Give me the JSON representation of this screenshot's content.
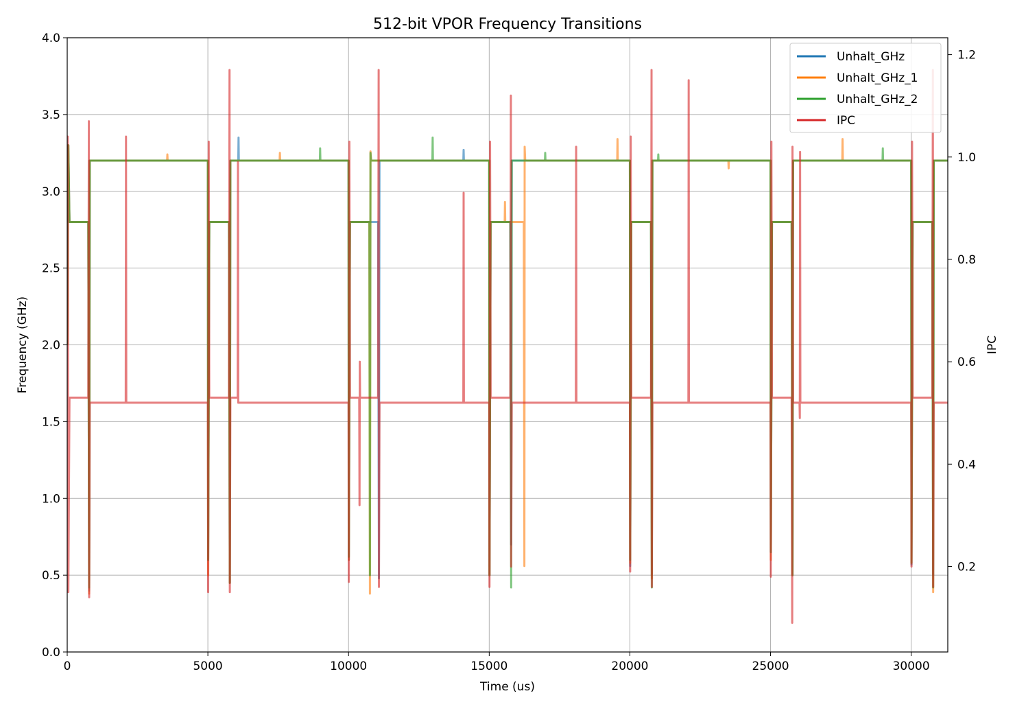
{
  "chart_data": {
    "type": "line",
    "title": "512-bit VPOR Frequency Transitions",
    "xlabel": "Time (us)",
    "ylabel": "Frequency (GHz)",
    "y2label": "IPC",
    "xlim": [
      0,
      31300
    ],
    "ylim": [
      0.0,
      4.0
    ],
    "y2lim": [
      0.033,
      1.233
    ],
    "x_ticks": [
      0,
      5000,
      10000,
      15000,
      20000,
      25000,
      30000
    ],
    "x_tick_labels": [
      "0",
      "5000",
      "10000",
      "15000",
      "20000",
      "25000",
      "30000"
    ],
    "y_ticks": [
      0.0,
      0.5,
      1.0,
      1.5,
      2.0,
      2.5,
      3.0,
      3.5,
      4.0
    ],
    "y_tick_labels": [
      "0.0",
      "0.5",
      "1.0",
      "1.5",
      "2.0",
      "2.5",
      "3.0",
      "3.5",
      "4.0"
    ],
    "y2_ticks": [
      0.2,
      0.4,
      0.6,
      0.8,
      1.0,
      1.2
    ],
    "y2_tick_labels": [
      "0.2",
      "0.4",
      "0.6",
      "0.8",
      "1.0",
      "1.2"
    ],
    "grid": true,
    "legend_position": "top-right",
    "series": [
      {
        "name": "Unhalt_GHz",
        "color": "#1f77b4",
        "axis": "left",
        "points": [
          [
            0,
            2.0
          ],
          [
            40,
            3.3
          ],
          [
            80,
            2.8
          ],
          [
            750,
            2.8
          ],
          [
            780,
            0.4
          ],
          [
            800,
            3.2
          ],
          [
            2100,
            3.2
          ],
          [
            3500,
            3.2
          ],
          [
            5000,
            3.2
          ],
          [
            5010,
            0.6
          ],
          [
            5050,
            2.8
          ],
          [
            5750,
            2.8
          ],
          [
            5780,
            0.45
          ],
          [
            5800,
            3.2
          ],
          [
            6080,
            3.2
          ],
          [
            6090,
            3.35
          ],
          [
            6100,
            3.2
          ],
          [
            10000,
            3.2
          ],
          [
            10010,
            0.6
          ],
          [
            10050,
            2.8
          ],
          [
            11050,
            2.8
          ],
          [
            11080,
            0.48
          ],
          [
            11100,
            3.2
          ],
          [
            14080,
            3.2
          ],
          [
            14090,
            3.27
          ],
          [
            14100,
            3.2
          ],
          [
            15000,
            3.2
          ],
          [
            15010,
            0.5
          ],
          [
            15050,
            2.8
          ],
          [
            15750,
            2.8
          ],
          [
            15780,
            0.7
          ],
          [
            15800,
            3.2
          ],
          [
            20000,
            3.2
          ],
          [
            20010,
            0.56
          ],
          [
            20050,
            2.8
          ],
          [
            20750,
            2.8
          ],
          [
            20780,
            0.5
          ],
          [
            20800,
            3.2
          ],
          [
            25000,
            3.2
          ],
          [
            25010,
            0.65
          ],
          [
            25050,
            2.8
          ],
          [
            25750,
            2.8
          ],
          [
            25780,
            0.5
          ],
          [
            25800,
            3.2
          ],
          [
            30000,
            3.2
          ],
          [
            30010,
            0.57
          ],
          [
            30050,
            2.8
          ],
          [
            30750,
            2.8
          ],
          [
            30780,
            0.5
          ],
          [
            30800,
            3.2
          ],
          [
            31300,
            3.2
          ]
        ]
      },
      {
        "name": "Unhalt_GHz_1",
        "color": "#ff7f0e",
        "axis": "left",
        "points": [
          [
            0,
            2.0
          ],
          [
            40,
            3.3
          ],
          [
            80,
            2.8
          ],
          [
            750,
            2.8
          ],
          [
            780,
            0.38
          ],
          [
            800,
            3.2
          ],
          [
            3550,
            3.2
          ],
          [
            3560,
            3.24
          ],
          [
            3570,
            3.2
          ],
          [
            5000,
            3.2
          ],
          [
            5010,
            0.5
          ],
          [
            5050,
            2.8
          ],
          [
            5750,
            2.8
          ],
          [
            5780,
            0.45
          ],
          [
            5800,
            3.2
          ],
          [
            7550,
            3.2
          ],
          [
            7560,
            3.25
          ],
          [
            7570,
            3.2
          ],
          [
            10000,
            3.2
          ],
          [
            10010,
            0.6
          ],
          [
            10050,
            2.8
          ],
          [
            10740,
            2.8
          ],
          [
            10760,
            0.38
          ],
          [
            10780,
            3.26
          ],
          [
            10800,
            3.2
          ],
          [
            15000,
            3.2
          ],
          [
            15010,
            0.5
          ],
          [
            15050,
            2.8
          ],
          [
            15550,
            2.8
          ],
          [
            15560,
            2.93
          ],
          [
            15570,
            2.8
          ],
          [
            16230,
            2.8
          ],
          [
            16250,
            0.56
          ],
          [
            16260,
            3.29
          ],
          [
            16280,
            3.2
          ],
          [
            19550,
            3.2
          ],
          [
            19560,
            3.34
          ],
          [
            19570,
            3.2
          ],
          [
            20000,
            3.2
          ],
          [
            20010,
            0.58
          ],
          [
            20050,
            2.8
          ],
          [
            20750,
            2.8
          ],
          [
            20780,
            0.48
          ],
          [
            20800,
            3.2
          ],
          [
            23500,
            3.2
          ],
          [
            23510,
            3.15
          ],
          [
            23520,
            3.2
          ],
          [
            25000,
            3.2
          ],
          [
            25010,
            0.6
          ],
          [
            25050,
            2.8
          ],
          [
            25750,
            2.8
          ],
          [
            25780,
            0.5
          ],
          [
            25800,
            3.2
          ],
          [
            27550,
            3.2
          ],
          [
            27560,
            3.34
          ],
          [
            27570,
            3.2
          ],
          [
            30000,
            3.2
          ],
          [
            30010,
            0.58
          ],
          [
            30050,
            2.8
          ],
          [
            30750,
            2.8
          ],
          [
            30780,
            0.39
          ],
          [
            30800,
            3.2
          ],
          [
            31300,
            3.2
          ]
        ]
      },
      {
        "name": "Unhalt_GHz_2",
        "color": "#2ca02c",
        "axis": "left",
        "points": [
          [
            0,
            2.0
          ],
          [
            40,
            3.3
          ],
          [
            80,
            2.8
          ],
          [
            750,
            2.8
          ],
          [
            780,
            0.42
          ],
          [
            800,
            3.2
          ],
          [
            5000,
            3.2
          ],
          [
            5010,
            0.6
          ],
          [
            5050,
            2.8
          ],
          [
            5750,
            2.8
          ],
          [
            5780,
            0.45
          ],
          [
            5800,
            3.2
          ],
          [
            8980,
            3.2
          ],
          [
            8990,
            3.28
          ],
          [
            9000,
            3.2
          ],
          [
            10000,
            3.2
          ],
          [
            10010,
            0.62
          ],
          [
            10050,
            2.8
          ],
          [
            10740,
            2.8
          ],
          [
            10760,
            0.5
          ],
          [
            10780,
            3.25
          ],
          [
            10800,
            3.2
          ],
          [
            12980,
            3.2
          ],
          [
            12990,
            3.35
          ],
          [
            13000,
            3.2
          ],
          [
            15000,
            3.2
          ],
          [
            15010,
            0.5
          ],
          [
            15050,
            2.8
          ],
          [
            15750,
            2.8
          ],
          [
            15780,
            0.42
          ],
          [
            15800,
            3.2
          ],
          [
            16980,
            3.2
          ],
          [
            16990,
            3.25
          ],
          [
            17000,
            3.2
          ],
          [
            20000,
            3.2
          ],
          [
            20010,
            0.6
          ],
          [
            20050,
            2.8
          ],
          [
            20750,
            2.8
          ],
          [
            20780,
            0.42
          ],
          [
            20800,
            3.2
          ],
          [
            21000,
            3.2
          ],
          [
            21010,
            3.24
          ],
          [
            21020,
            3.2
          ],
          [
            25000,
            3.2
          ],
          [
            25010,
            0.65
          ],
          [
            25050,
            2.8
          ],
          [
            25750,
            2.8
          ],
          [
            25780,
            0.5
          ],
          [
            25800,
            3.2
          ],
          [
            28980,
            3.2
          ],
          [
            28990,
            3.28
          ],
          [
            29000,
            3.2
          ],
          [
            30000,
            3.2
          ],
          [
            30010,
            0.58
          ],
          [
            30050,
            2.8
          ],
          [
            30750,
            2.8
          ],
          [
            30780,
            0.42
          ],
          [
            30800,
            3.2
          ],
          [
            31300,
            3.2
          ]
        ]
      },
      {
        "name": "IPC",
        "color": "#d62728",
        "axis": "right",
        "points": [
          [
            0,
            0.2
          ],
          [
            20,
            1.04
          ],
          [
            40,
            0.15
          ],
          [
            80,
            0.53
          ],
          [
            750,
            0.53
          ],
          [
            770,
            1.07
          ],
          [
            780,
            0.14
          ],
          [
            800,
            0.52
          ],
          [
            2080,
            0.52
          ],
          [
            2090,
            1.04
          ],
          [
            2100,
            0.52
          ],
          [
            5000,
            0.52
          ],
          [
            5010,
            0.15
          ],
          [
            5030,
            1.03
          ],
          [
            5050,
            0.53
          ],
          [
            5750,
            0.53
          ],
          [
            5770,
            1.17
          ],
          [
            5780,
            0.15
          ],
          [
            5800,
            0.53
          ],
          [
            6060,
            0.53
          ],
          [
            6070,
            0.99
          ],
          [
            6080,
            0.52
          ],
          [
            10000,
            0.52
          ],
          [
            10010,
            0.17
          ],
          [
            10030,
            1.03
          ],
          [
            10050,
            0.53
          ],
          [
            10380,
            0.53
          ],
          [
            10390,
            0.32
          ],
          [
            10400,
            0.6
          ],
          [
            10410,
            0.53
          ],
          [
            11050,
            0.53
          ],
          [
            11070,
            1.17
          ],
          [
            11080,
            0.16
          ],
          [
            11100,
            0.52
          ],
          [
            14080,
            0.52
          ],
          [
            14090,
            0.93
          ],
          [
            14100,
            0.52
          ],
          [
            15000,
            0.52
          ],
          [
            15010,
            0.16
          ],
          [
            15030,
            1.03
          ],
          [
            15050,
            0.53
          ],
          [
            15750,
            0.53
          ],
          [
            15770,
            1.12
          ],
          [
            15780,
            0.2
          ],
          [
            15800,
            0.52
          ],
          [
            18080,
            0.52
          ],
          [
            18090,
            1.02
          ],
          [
            18100,
            0.52
          ],
          [
            20000,
            0.52
          ],
          [
            20010,
            0.19
          ],
          [
            20030,
            1.04
          ],
          [
            20050,
            0.53
          ],
          [
            20750,
            0.53
          ],
          [
            20770,
            1.17
          ],
          [
            20780,
            0.16
          ],
          [
            20800,
            0.52
          ],
          [
            22080,
            0.52
          ],
          [
            22090,
            1.15
          ],
          [
            22100,
            0.52
          ],
          [
            25000,
            0.52
          ],
          [
            25010,
            0.18
          ],
          [
            25030,
            1.03
          ],
          [
            25050,
            0.53
          ],
          [
            25750,
            0.53
          ],
          [
            25770,
            0.09
          ],
          [
            25780,
            1.02
          ],
          [
            25800,
            0.52
          ],
          [
            26030,
            0.52
          ],
          [
            26040,
            0.49
          ],
          [
            26050,
            1.01
          ],
          [
            26060,
            0.52
          ],
          [
            30000,
            0.52
          ],
          [
            30010,
            0.2
          ],
          [
            30030,
            1.03
          ],
          [
            30050,
            0.53
          ],
          [
            30750,
            0.53
          ],
          [
            30770,
            1.17
          ],
          [
            30780,
            0.16
          ],
          [
            30800,
            0.52
          ],
          [
            31300,
            0.52
          ]
        ]
      }
    ]
  }
}
